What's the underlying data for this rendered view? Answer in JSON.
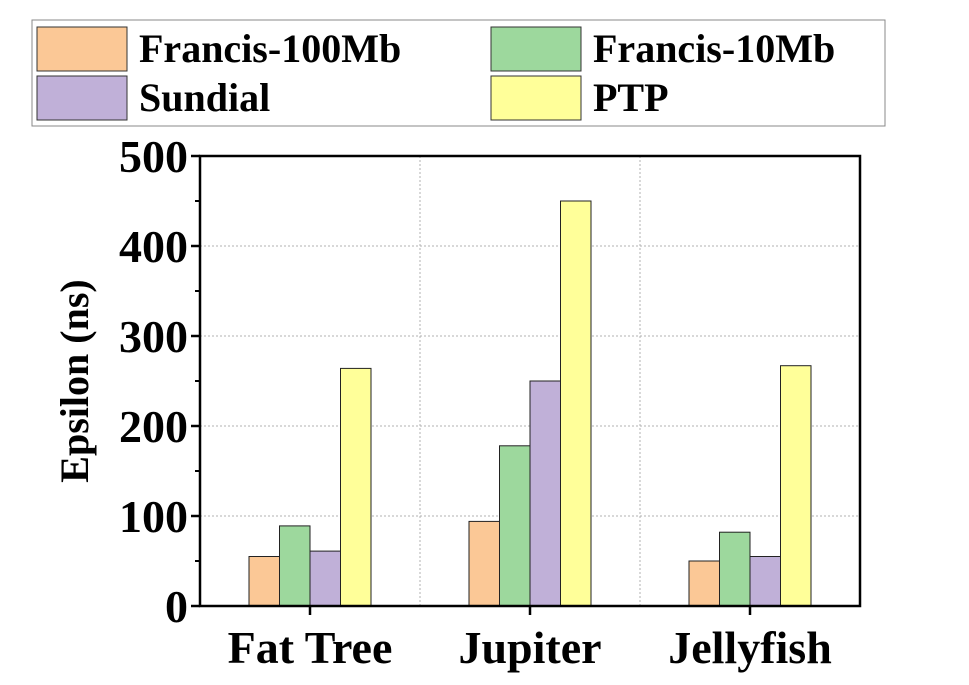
{
  "chart_data": {
    "type": "bar",
    "title": "",
    "xlabel": "",
    "ylabel": "Epsilon (ns)",
    "ylim": [
      0,
      500
    ],
    "yticks": [
      0,
      100,
      200,
      300,
      400,
      500
    ],
    "grid": true,
    "legend_position": "top",
    "categories": [
      "Fat Tree",
      "Jupiter",
      "Jellyfish"
    ],
    "series": [
      {
        "name": "Francis-100Mb",
        "color": "#FBC896",
        "values": [
          55,
          94,
          50
        ]
      },
      {
        "name": "Francis-10Mb",
        "color": "#9DD89D",
        "values": [
          89,
          178,
          82
        ]
      },
      {
        "name": "Sundial",
        "color": "#C0B0D8",
        "values": [
          61,
          250,
          55
        ]
      },
      {
        "name": "PTP",
        "color": "#FFFF99",
        "values": [
          264,
          450,
          267
        ]
      }
    ]
  }
}
